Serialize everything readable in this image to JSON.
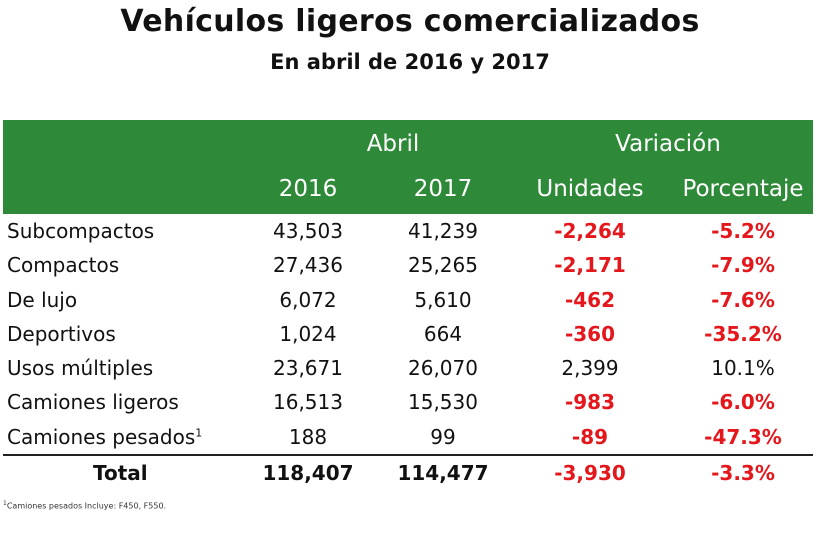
{
  "title": "Vehículos ligeros comercializados",
  "subtitle": "En abril de 2016 y 2017",
  "header": {
    "abril": "Abril",
    "variacion": "Variación",
    "col_2016": "2016",
    "col_2017": "2017",
    "unidades": "Unidades",
    "porcentaje": "Porcentaje"
  },
  "rows": [
    {
      "category": "Subcompactos",
      "y2016": "43,503",
      "y2017": "41,239",
      "unidades": "-2,264",
      "porcentaje": "-5.2%"
    },
    {
      "category": "Compactos",
      "y2016": "27,436",
      "y2017": "25,265",
      "unidades": "-2,171",
      "porcentaje": "-7.9%"
    },
    {
      "category": "De lujo",
      "y2016": "6,072",
      "y2017": "5,610",
      "unidades": "-462",
      "porcentaje": "-7.6%"
    },
    {
      "category": "Deportivos",
      "y2016": "1,024",
      "y2017": "664",
      "unidades": "-360",
      "porcentaje": "-35.2%"
    },
    {
      "category": "Usos múltiples",
      "y2016": "23,671",
      "y2017": "26,070",
      "unidades": "2,399",
      "porcentaje": "10.1%"
    },
    {
      "category": "Camiones ligeros",
      "y2016": "16,513",
      "y2017": "15,530",
      "unidades": "-983",
      "porcentaje": "-6.0%"
    },
    {
      "category": "Camiones pesados",
      "sup": "1",
      "y2016": "188",
      "y2017": "99",
      "unidades": "-89",
      "porcentaje": "-47.3%"
    }
  ],
  "total": {
    "category": "Total",
    "y2016": "118,407",
    "y2017": "114,477",
    "unidades": "-3,930",
    "porcentaje": "-3.3%"
  },
  "footnote": {
    "sup": "1",
    "text": "Camiones pesados Incluye: F450, F550."
  },
  "colors": {
    "header_bg": "#2e8a38",
    "negative": "#e3171c"
  }
}
